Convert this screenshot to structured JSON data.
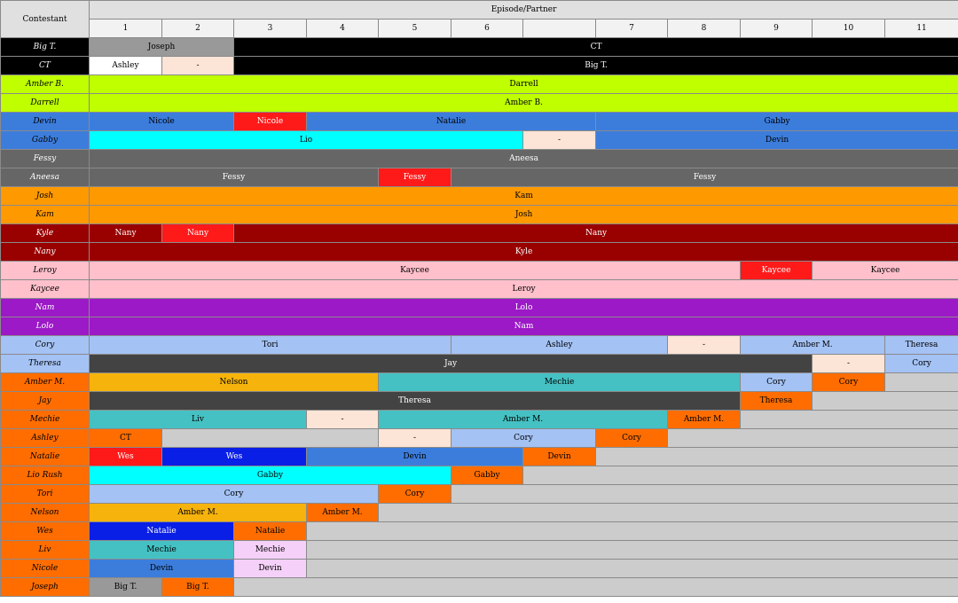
{
  "header": {
    "contestant_label": "Contestant",
    "episode_label": "Episode/Partner",
    "episodes": [
      "1",
      "2",
      "3",
      "4",
      "5",
      "6",
      "",
      "7",
      "8",
      "9",
      "10",
      "11"
    ]
  },
  "colors": {
    "black": "#000000",
    "grey": "#999999",
    "white": "#ffffff",
    "peach": "#fce4d6",
    "lime": "#bfff00",
    "blue": "#3c7ddc",
    "red": "#ff1a1a",
    "cyan": "#00ffff",
    "dimgrey": "#666666",
    "orange": "#ff9900",
    "darkred": "#990000",
    "pink": "#ffc0cb",
    "purple": "#9b19c6",
    "lightblue": "#a4c2f4",
    "charcoal": "#434343",
    "deeporange": "#ff6d01",
    "gold": "#f6b30b",
    "teal": "#45c1c3",
    "royalblue": "#0a1fe6",
    "lavender": "#f5d0f8",
    "lightgrey": "#cccccc"
  },
  "rows": [
    {
      "name": "Big T.",
      "name_bg": "black",
      "name_fg": "#ffffff",
      "cells": [
        {
          "text": "Joseph",
          "span": 2,
          "bg": "grey",
          "fg": "#000000"
        },
        {
          "text": "CT",
          "span": 10,
          "bg": "black",
          "fg": "#ffffff"
        }
      ]
    },
    {
      "name": "CT",
      "name_bg": "black",
      "name_fg": "#ffffff",
      "cells": [
        {
          "text": "Ashley",
          "span": 1,
          "bg": "white",
          "fg": "#000000"
        },
        {
          "text": "-",
          "span": 1,
          "bg": "peach",
          "fg": "#000000"
        },
        {
          "text": "Big T.",
          "span": 10,
          "bg": "black",
          "fg": "#ffffff"
        }
      ]
    },
    {
      "name": "Amber B.",
      "name_bg": "lime",
      "name_fg": "#000000",
      "cells": [
        {
          "text": "Darrell",
          "span": 12,
          "bg": "lime",
          "fg": "#000000"
        }
      ]
    },
    {
      "name": "Darrell",
      "name_bg": "lime",
      "name_fg": "#000000",
      "cells": [
        {
          "text": "Amber B.",
          "span": 12,
          "bg": "lime",
          "fg": "#000000"
        }
      ]
    },
    {
      "name": "Devin",
      "name_bg": "blue",
      "name_fg": "#000000",
      "cells": [
        {
          "text": "Nicole",
          "span": 2,
          "bg": "blue",
          "fg": "#000000"
        },
        {
          "text": "Nicole",
          "span": 1,
          "bg": "red",
          "fg": "#ffffff"
        },
        {
          "text": "Natalie",
          "span": 4,
          "bg": "blue",
          "fg": "#000000"
        },
        {
          "text": "Gabby",
          "span": 5,
          "bg": "blue",
          "fg": "#000000"
        }
      ]
    },
    {
      "name": "Gabby",
      "name_bg": "blue",
      "name_fg": "#000000",
      "cells": [
        {
          "text": "Lio",
          "span": 6,
          "bg": "cyan",
          "fg": "#000000"
        },
        {
          "text": "-",
          "span": 1,
          "bg": "peach",
          "fg": "#000000"
        },
        {
          "text": "Devin",
          "span": 5,
          "bg": "blue",
          "fg": "#000000"
        }
      ]
    },
    {
      "name": "Fessy",
      "name_bg": "dimgrey",
      "name_fg": "#ffffff",
      "cells": [
        {
          "text": "Aneesa",
          "span": 12,
          "bg": "dimgrey",
          "fg": "#ffffff"
        }
      ]
    },
    {
      "name": "Aneesa",
      "name_bg": "dimgrey",
      "name_fg": "#ffffff",
      "cells": [
        {
          "text": "Fessy",
          "span": 4,
          "bg": "dimgrey",
          "fg": "#ffffff"
        },
        {
          "text": "Fessy",
          "span": 1,
          "bg": "red",
          "fg": "#ffffff"
        },
        {
          "text": "Fessy",
          "span": 7,
          "bg": "dimgrey",
          "fg": "#ffffff"
        }
      ]
    },
    {
      "name": "Josh",
      "name_bg": "orange",
      "name_fg": "#000000",
      "cells": [
        {
          "text": "Kam",
          "span": 12,
          "bg": "orange",
          "fg": "#000000"
        }
      ]
    },
    {
      "name": "Kam",
      "name_bg": "orange",
      "name_fg": "#000000",
      "cells": [
        {
          "text": "Josh",
          "span": 12,
          "bg": "orange",
          "fg": "#000000"
        }
      ]
    },
    {
      "name": "Kyle",
      "name_bg": "darkred",
      "name_fg": "#ffffff",
      "cells": [
        {
          "text": "Nany",
          "span": 1,
          "bg": "darkred",
          "fg": "#ffffff"
        },
        {
          "text": "Nany",
          "span": 1,
          "bg": "red",
          "fg": "#ffffff"
        },
        {
          "text": "Nany",
          "span": 10,
          "bg": "darkred",
          "fg": "#ffffff"
        }
      ]
    },
    {
      "name": "Nany",
      "name_bg": "darkred",
      "name_fg": "#ffffff",
      "cells": [
        {
          "text": "Kyle",
          "span": 12,
          "bg": "darkred",
          "fg": "#ffffff"
        }
      ]
    },
    {
      "name": "Leroy",
      "name_bg": "pink",
      "name_fg": "#000000",
      "cells": [
        {
          "text": "Kaycee",
          "span": 9,
          "bg": "pink",
          "fg": "#000000"
        },
        {
          "text": "Kaycee",
          "span": 1,
          "bg": "red",
          "fg": "#ffffff"
        },
        {
          "text": "Kaycee",
          "span": 2,
          "bg": "pink",
          "fg": "#000000"
        }
      ]
    },
    {
      "name": "Kaycee",
      "name_bg": "pink",
      "name_fg": "#000000",
      "cells": [
        {
          "text": "Leroy",
          "span": 12,
          "bg": "pink",
          "fg": "#000000"
        }
      ]
    },
    {
      "name": "Nam",
      "name_bg": "purple",
      "name_fg": "#ffffff",
      "cells": [
        {
          "text": "Lolo",
          "span": 12,
          "bg": "purple",
          "fg": "#ffffff"
        }
      ]
    },
    {
      "name": "Lolo",
      "name_bg": "purple",
      "name_fg": "#ffffff",
      "cells": [
        {
          "text": "Nam",
          "span": 12,
          "bg": "purple",
          "fg": "#ffffff"
        }
      ]
    },
    {
      "name": "Cory",
      "name_bg": "lightblue",
      "name_fg": "#000000",
      "cells": [
        {
          "text": "Tori",
          "span": 5,
          "bg": "lightblue",
          "fg": "#000000"
        },
        {
          "text": "Ashley",
          "span": 3,
          "bg": "lightblue",
          "fg": "#000000"
        },
        {
          "text": "-",
          "span": 1,
          "bg": "peach",
          "fg": "#000000"
        },
        {
          "text": "Amber M.",
          "span": 2,
          "bg": "lightblue",
          "fg": "#000000"
        },
        {
          "text": "Theresa",
          "span": 1,
          "bg": "lightblue",
          "fg": "#000000"
        }
      ]
    },
    {
      "name": "Theresa",
      "name_bg": "lightblue",
      "name_fg": "#000000",
      "cells": [
        {
          "text": "Jay",
          "span": 10,
          "bg": "charcoal",
          "fg": "#ffffff"
        },
        {
          "text": "-",
          "span": 1,
          "bg": "peach",
          "fg": "#000000"
        },
        {
          "text": "Cory",
          "span": 1,
          "bg": "lightblue",
          "fg": "#000000"
        }
      ]
    },
    {
      "name": "Amber M.",
      "name_bg": "deeporange",
      "name_fg": "#000000",
      "cells": [
        {
          "text": "Nelson",
          "span": 4,
          "bg": "gold",
          "fg": "#000000"
        },
        {
          "text": "Mechie",
          "span": 5,
          "bg": "teal",
          "fg": "#000000"
        },
        {
          "text": "Cory",
          "span": 1,
          "bg": "lightblue",
          "fg": "#000000"
        },
        {
          "text": "Cory",
          "span": 1,
          "bg": "deeporange",
          "fg": "#000000"
        },
        {
          "text": "",
          "span": 1,
          "bg": "lightgrey",
          "fg": "#000000"
        }
      ]
    },
    {
      "name": "Jay",
      "name_bg": "deeporange",
      "name_fg": "#000000",
      "cells": [
        {
          "text": "Theresa",
          "span": 9,
          "bg": "charcoal",
          "fg": "#ffffff"
        },
        {
          "text": "Theresa",
          "span": 1,
          "bg": "deeporange",
          "fg": "#000000"
        },
        {
          "text": "",
          "span": 2,
          "bg": "lightgrey",
          "fg": "#000000"
        }
      ]
    },
    {
      "name": "Mechie",
      "name_bg": "deeporange",
      "name_fg": "#000000",
      "cells": [
        {
          "text": "Liv",
          "span": 3,
          "bg": "teal",
          "fg": "#000000"
        },
        {
          "text": "-",
          "span": 1,
          "bg": "peach",
          "fg": "#000000"
        },
        {
          "text": "Amber M.",
          "span": 4,
          "bg": "teal",
          "fg": "#000000"
        },
        {
          "text": "Amber M.",
          "span": 1,
          "bg": "deeporange",
          "fg": "#000000"
        },
        {
          "text": "",
          "span": 3,
          "bg": "lightgrey",
          "fg": "#000000"
        }
      ]
    },
    {
      "name": "Ashley",
      "name_bg": "deeporange",
      "name_fg": "#000000",
      "cells": [
        {
          "text": "CT",
          "span": 1,
          "bg": "deeporange",
          "fg": "#000000"
        },
        {
          "text": "",
          "span": 3,
          "bg": "lightgrey",
          "fg": "#000000"
        },
        {
          "text": "-",
          "span": 1,
          "bg": "peach",
          "fg": "#000000"
        },
        {
          "text": "Cory",
          "span": 2,
          "bg": "lightblue",
          "fg": "#000000"
        },
        {
          "text": "Cory",
          "span": 1,
          "bg": "deeporange",
          "fg": "#000000"
        },
        {
          "text": "",
          "span": 4,
          "bg": "lightgrey",
          "fg": "#000000"
        }
      ]
    },
    {
      "name": "Natalie",
      "name_bg": "deeporange",
      "name_fg": "#000000",
      "cells": [
        {
          "text": "Wes",
          "span": 1,
          "bg": "red",
          "fg": "#ffffff"
        },
        {
          "text": "Wes",
          "span": 2,
          "bg": "royalblue",
          "fg": "#ffffff"
        },
        {
          "text": "Devin",
          "span": 3,
          "bg": "blue",
          "fg": "#000000"
        },
        {
          "text": "Devin",
          "span": 1,
          "bg": "deeporange",
          "fg": "#000000"
        },
        {
          "text": "",
          "span": 5,
          "bg": "lightgrey",
          "fg": "#000000"
        }
      ]
    },
    {
      "name": "Lio Rush",
      "name_bg": "deeporange",
      "name_fg": "#000000",
      "cells": [
        {
          "text": "Gabby",
          "span": 5,
          "bg": "cyan",
          "fg": "#000000"
        },
        {
          "text": "Gabby",
          "span": 1,
          "bg": "deeporange",
          "fg": "#000000"
        },
        {
          "text": "",
          "span": 6,
          "bg": "lightgrey",
          "fg": "#000000"
        }
      ]
    },
    {
      "name": "Tori",
      "name_bg": "deeporange",
      "name_fg": "#000000",
      "cells": [
        {
          "text": "Cory",
          "span": 4,
          "bg": "lightblue",
          "fg": "#000000"
        },
        {
          "text": "Cory",
          "span": 1,
          "bg": "deeporange",
          "fg": "#000000"
        },
        {
          "text": "",
          "span": 7,
          "bg": "lightgrey",
          "fg": "#000000"
        }
      ]
    },
    {
      "name": "Nelson",
      "name_bg": "deeporange",
      "name_fg": "#000000",
      "cells": [
        {
          "text": "Amber M.",
          "span": 3,
          "bg": "gold",
          "fg": "#000000"
        },
        {
          "text": "Amber M.",
          "span": 1,
          "bg": "deeporange",
          "fg": "#000000"
        },
        {
          "text": "",
          "span": 8,
          "bg": "lightgrey",
          "fg": "#000000"
        }
      ]
    },
    {
      "name": "Wes",
      "name_bg": "deeporange",
      "name_fg": "#000000",
      "cells": [
        {
          "text": "Natalie",
          "span": 2,
          "bg": "royalblue",
          "fg": "#ffffff"
        },
        {
          "text": "Natalie",
          "span": 1,
          "bg": "deeporange",
          "fg": "#000000"
        },
        {
          "text": "",
          "span": 9,
          "bg": "lightgrey",
          "fg": "#000000"
        }
      ]
    },
    {
      "name": "Liv",
      "name_bg": "deeporange",
      "name_fg": "#000000",
      "cells": [
        {
          "text": "Mechie",
          "span": 2,
          "bg": "teal",
          "fg": "#000000"
        },
        {
          "text": "Mechie",
          "span": 1,
          "bg": "lavender",
          "fg": "#000000"
        },
        {
          "text": "",
          "span": 9,
          "bg": "lightgrey",
          "fg": "#000000"
        }
      ]
    },
    {
      "name": "Nicole",
      "name_bg": "deeporange",
      "name_fg": "#000000",
      "cells": [
        {
          "text": "Devin",
          "span": 2,
          "bg": "blue",
          "fg": "#000000"
        },
        {
          "text": "Devin",
          "span": 1,
          "bg": "lavender",
          "fg": "#000000"
        },
        {
          "text": "",
          "span": 9,
          "bg": "lightgrey",
          "fg": "#000000"
        }
      ]
    },
    {
      "name": "Joseph",
      "name_bg": "deeporange",
      "name_fg": "#000000",
      "cells": [
        {
          "text": "Big T.",
          "span": 1,
          "bg": "grey",
          "fg": "#000000"
        },
        {
          "text": "Big T.",
          "span": 1,
          "bg": "deeporange",
          "fg": "#000000"
        },
        {
          "text": "",
          "span": 10,
          "bg": "lightgrey",
          "fg": "#000000"
        }
      ]
    }
  ]
}
